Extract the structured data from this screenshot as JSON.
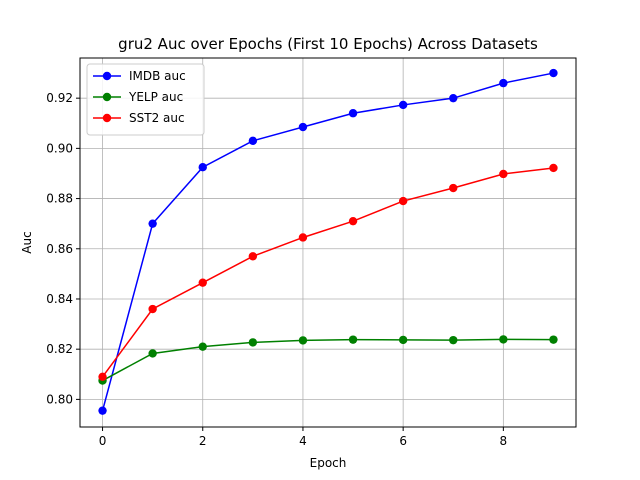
{
  "chart_data": {
    "type": "line",
    "title": "gru2 Auc over Epochs (First 10 Epochs) Across Datasets",
    "xlabel": "Epoch",
    "ylabel": "Auc",
    "xlim": [
      -0.45,
      9.45
    ],
    "ylim": [
      0.789,
      0.936
    ],
    "xticks": [
      0,
      2,
      4,
      6,
      8
    ],
    "yticks": [
      0.8,
      0.82,
      0.84,
      0.86,
      0.88,
      0.9,
      0.92
    ],
    "grid": true,
    "legend_position": "top-left",
    "x": [
      0,
      1,
      2,
      3,
      4,
      5,
      6,
      7,
      8,
      9
    ],
    "series": [
      {
        "name": "IMDB auc",
        "color": "#0000ff",
        "values": [
          0.7955,
          0.87,
          0.8925,
          0.903,
          0.9085,
          0.914,
          0.9173,
          0.92,
          0.926,
          0.93
        ]
      },
      {
        "name": "YELP auc",
        "color": "#008000",
        "values": [
          0.8075,
          0.8183,
          0.821,
          0.8227,
          0.8235,
          0.8238,
          0.8237,
          0.8236,
          0.8239,
          0.8238
        ]
      },
      {
        "name": "SST2 auc",
        "color": "#ff0000",
        "values": [
          0.809,
          0.836,
          0.8465,
          0.857,
          0.8645,
          0.871,
          0.879,
          0.8842,
          0.8898,
          0.8922
        ]
      }
    ]
  }
}
